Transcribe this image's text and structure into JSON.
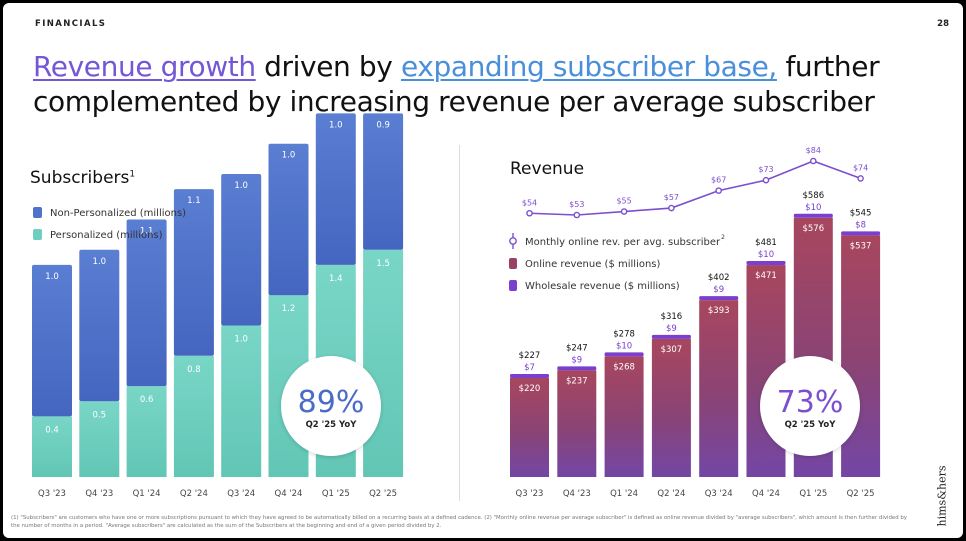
{
  "header": {
    "section": "FINANCIALS",
    "page_number": "28"
  },
  "headline": {
    "part1": "Revenue growth",
    "part2": " driven by ",
    "part3": "expanding subscriber base,",
    "part4": " further complemented by increasing revenue per average subscriber"
  },
  "colors": {
    "accent_purple": "#7357d6",
    "accent_blue": "#4a8fd9",
    "personalized": "#6ecfc0",
    "non_personalized": "#4f73c9",
    "online": "#9a4266",
    "wholesale": "#7a3fcf",
    "line": "#7b4fcf"
  },
  "chart_data": [
    {
      "type": "bar",
      "title": "Subscribers",
      "title_sup": "1",
      "categories": [
        "Q3 '23",
        "Q4 '23",
        "Q1 '24",
        "Q2 '24",
        "Q3 '24",
        "Q4 '24",
        "Q1 '25",
        "Q2 '25"
      ],
      "series": [
        {
          "name": "Personalized (millions)",
          "values": [
            0.4,
            0.5,
            0.6,
            0.8,
            1.0,
            1.2,
            1.4,
            1.5
          ]
        },
        {
          "name": "Non-Personalized (millions)",
          "values": [
            1.0,
            1.0,
            1.1,
            1.1,
            1.0,
            1.0,
            1.0,
            0.9
          ]
        }
      ],
      "stacked": true,
      "labels_personalized": [
        "0.4",
        "0.5",
        "0.6",
        "0.8",
        "1.0",
        "1.2",
        "1.4",
        "1.5"
      ],
      "labels_non_personalized": [
        "1.0",
        "1.0",
        "1.1",
        "1.1",
        "1.0",
        "1.0",
        "1.0",
        "0.9"
      ],
      "callout": {
        "value": "89%",
        "label": "Q2 '25 YoY"
      },
      "legend": "top-left"
    },
    {
      "type": "bar",
      "title": "Revenue",
      "categories": [
        "Q3 '23",
        "Q4 '23",
        "Q1 '24",
        "Q2 '24",
        "Q3 '24",
        "Q4 '24",
        "Q1 '25",
        "Q2 '25"
      ],
      "series": [
        {
          "name": "Online revenue ($ millions)",
          "values": [
            220,
            237,
            268,
            307,
            393,
            471,
            576,
            537
          ]
        },
        {
          "name": "Wholesale revenue ($ millions)",
          "values": [
            7,
            9,
            10,
            9,
            9,
            10,
            10,
            8
          ]
        }
      ],
      "stacked": true,
      "totals": [
        227,
        247,
        278,
        316,
        402,
        481,
        586,
        545
      ],
      "total_labels": [
        "$227",
        "$247",
        "$278",
        "$316",
        "$402",
        "$481",
        "$586",
        "$545"
      ],
      "online_labels": [
        "$220",
        "$237",
        "$268",
        "$307",
        "$393",
        "$471",
        "$576",
        "$537"
      ],
      "wholesale_labels": [
        "$7",
        "$9",
        "$10",
        "$9",
        "$9",
        "$10",
        "$10",
        "$8"
      ],
      "line_series": {
        "name": "Monthly online rev. per avg. subscriber",
        "sup": "2",
        "values": [
          54,
          53,
          55,
          57,
          67,
          73,
          84,
          74
        ],
        "labels": [
          "$54",
          "$53",
          "$55",
          "$57",
          "$67",
          "$73",
          "$84",
          "$74"
        ]
      },
      "callout": {
        "value": "73%",
        "label": "Q2 '25 YoY"
      },
      "legend": "middle-left"
    }
  ],
  "footnote": "(1) \"Subscribers\" are customers who have one or more subscriptions pursuant to which they have agreed to be automatically billed on a recurring basis at a defined cadence. (2) \"Monthly online revenue per average subscriber\" is defined as online revenue divided by \"average subscribers\", which amount is then further divided by the number of months in a period. \"Average subscribers\" are calculated as the sum of the Subscribers at the beginning and end of a given period divided by 2.",
  "logo": "hims&hers"
}
